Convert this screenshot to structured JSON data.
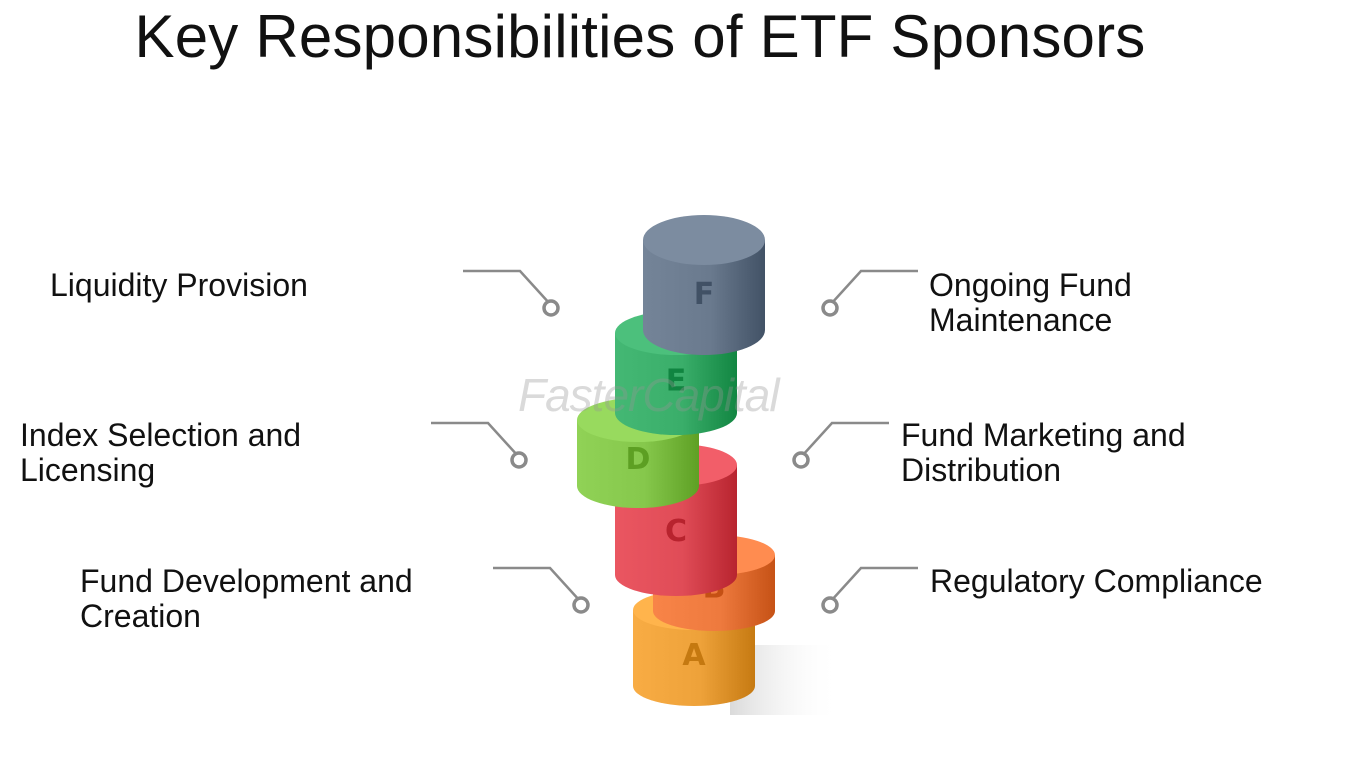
{
  "title": "Key Responsibilities of ETF Sponsors",
  "left_labels": [
    {
      "id": "liquidity",
      "lines": [
        "Liquidity Provision"
      ]
    },
    {
      "id": "index",
      "lines": [
        "Index Selection and",
        "Licensing"
      ]
    },
    {
      "id": "development",
      "lines": [
        "Fund Development and",
        "Creation"
      ]
    }
  ],
  "right_labels": [
    {
      "id": "maintenance",
      "lines": [
        "Ongoing Fund",
        "Maintenance"
      ]
    },
    {
      "id": "marketing",
      "lines": [
        "Fund Marketing and",
        "Distribution"
      ]
    },
    {
      "id": "compliance",
      "lines": [
        "Regulatory Compliance"
      ]
    }
  ],
  "layers": [
    {
      "letter": "A",
      "color": "#eea23a"
    },
    {
      "letter": "B",
      "color": "#ee7a3e"
    },
    {
      "letter": "C",
      "color": "#e04c57"
    },
    {
      "letter": "D",
      "color": "#86c84c"
    },
    {
      "letter": "E",
      "color": "#3aae6a"
    },
    {
      "letter": "F",
      "color": "#6a7a8e"
    }
  ],
  "watermark": "FasterCapital"
}
